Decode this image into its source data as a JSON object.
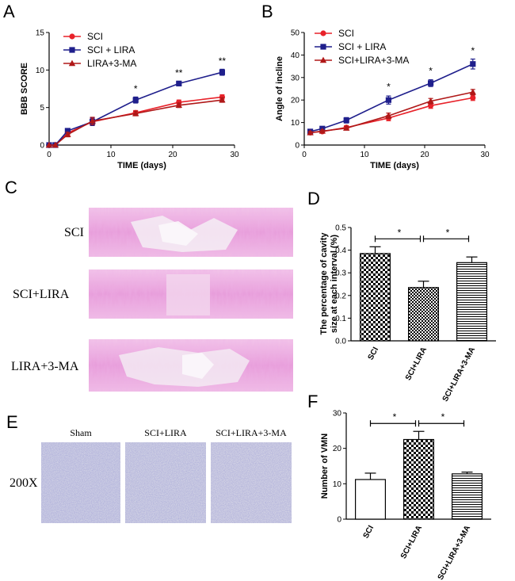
{
  "panels": {
    "A": "A",
    "B": "B",
    "C": "C",
    "D": "D",
    "E": "E",
    "F": "F"
  },
  "colors": {
    "sci": "#e8222a",
    "lira": "#1f1f8c",
    "ma": "#b01818"
  },
  "chart_data": [
    {
      "id": "A",
      "type": "line",
      "xlabel": "TIME (days)",
      "ylabel": "BBB SCORE",
      "xlim": [
        0,
        30
      ],
      "ylim": [
        0,
        15
      ],
      "xticks": [
        "0",
        "10",
        "20",
        "30"
      ],
      "yticks": [
        "0",
        "5",
        "10",
        "15"
      ],
      "x": [
        0,
        1,
        3,
        7,
        14,
        21,
        28
      ],
      "series": [
        {
          "name": "SCI",
          "values": [
            0,
            0,
            1.6,
            3.1,
            4.3,
            5.7,
            6.4
          ],
          "err": [
            0,
            0,
            0.3,
            0.4,
            0.3,
            0.3,
            0.3
          ]
        },
        {
          "name": "SCI + LIRA",
          "values": [
            0,
            0,
            1.9,
            3.1,
            6.0,
            8.2,
            9.7
          ],
          "err": [
            0,
            0,
            0.3,
            0.5,
            0.4,
            0.3,
            0.4
          ]
        },
        {
          "name": "LIRA+3-MA",
          "values": [
            0,
            0,
            1.4,
            3.2,
            4.2,
            5.3,
            6.0
          ],
          "err": [
            0,
            0,
            0.3,
            0.5,
            0.3,
            0.3,
            0.3
          ]
        }
      ],
      "annotations": [
        {
          "x": 14,
          "y": 7.1,
          "text": "*"
        },
        {
          "x": 21,
          "y": 9.2,
          "text": "**"
        },
        {
          "x": 28,
          "y": 10.8,
          "text": "**"
        }
      ]
    },
    {
      "id": "B",
      "type": "line",
      "xlabel": "TIME (days)",
      "ylabel": "Angle of incline",
      "xlim": [
        0,
        30
      ],
      "ylim": [
        0,
        50
      ],
      "xticks": [
        "0",
        "10",
        "20",
        "30"
      ],
      "yticks": [
        "0",
        "10",
        "20",
        "30",
        "40",
        "50"
      ],
      "x": [
        1,
        3,
        7,
        14,
        21,
        28
      ],
      "series": [
        {
          "name": "SCI",
          "values": [
            5.5,
            6.0,
            7.8,
            12.0,
            17.5,
            21.0
          ],
          "err": [
            0.5,
            0.5,
            0.8,
            1.2,
            1.2,
            1.2
          ]
        },
        {
          "name": "SCI + LIRA",
          "values": [
            6.0,
            7.3,
            11.0,
            20.0,
            27.5,
            36.0
          ],
          "err": [
            0.5,
            0.8,
            1.2,
            1.8,
            1.5,
            2.2
          ]
        },
        {
          "name": "SCI+LIRA+3-MA",
          "values": [
            5.5,
            6.2,
            7.5,
            13.0,
            19.5,
            23.5
          ],
          "err": [
            0.5,
            0.5,
            0.8,
            1.2,
            1.2,
            1.2
          ]
        }
      ],
      "annotations": [
        {
          "x": 14,
          "y": 24.5,
          "text": "*"
        },
        {
          "x": 21,
          "y": 31.5,
          "text": "*"
        },
        {
          "x": 28,
          "y": 40.5,
          "text": "*"
        }
      ]
    },
    {
      "id": "D",
      "type": "bar",
      "ylabel_line1": "The percentage of cavity",
      "ylabel_line2": "size at each interval (%)",
      "ylim": [
        0,
        0.5
      ],
      "yticks": [
        "0.0",
        "0.1",
        "0.2",
        "0.3",
        "0.4",
        "0.5"
      ],
      "categories": [
        "SCI",
        "SCI+LIRA",
        "SCI+LIRA+3-MA"
      ],
      "values": [
        0.385,
        0.235,
        0.345
      ],
      "err": [
        0.03,
        0.028,
        0.025
      ],
      "sig": [
        {
          "from": 0,
          "to": 1,
          "text": "*"
        },
        {
          "from": 1,
          "to": 2,
          "text": "*"
        }
      ]
    },
    {
      "id": "F",
      "type": "bar",
      "ylabel": "Number of VMN",
      "ylim": [
        0,
        30
      ],
      "yticks": [
        "0",
        "10",
        "20",
        "30"
      ],
      "categories": [
        "SCI",
        "SCI+LIRA",
        "SCI+LIRA+3-MA"
      ],
      "values": [
        11.2,
        22.5,
        12.8
      ],
      "err": [
        1.8,
        2.3,
        0.5
      ],
      "sig": [
        {
          "from": 0,
          "to": 1,
          "text": "*"
        },
        {
          "from": 1,
          "to": 2,
          "text": "*"
        }
      ]
    }
  ],
  "panelC": {
    "rows": [
      "SCI",
      "SCI+LIRA",
      "LIRA+3-MA"
    ]
  },
  "panelE": {
    "columns": [
      "Sham",
      "SCI+LIRA",
      "SCI+LIRA+3-MA"
    ],
    "magnification": "200X"
  }
}
